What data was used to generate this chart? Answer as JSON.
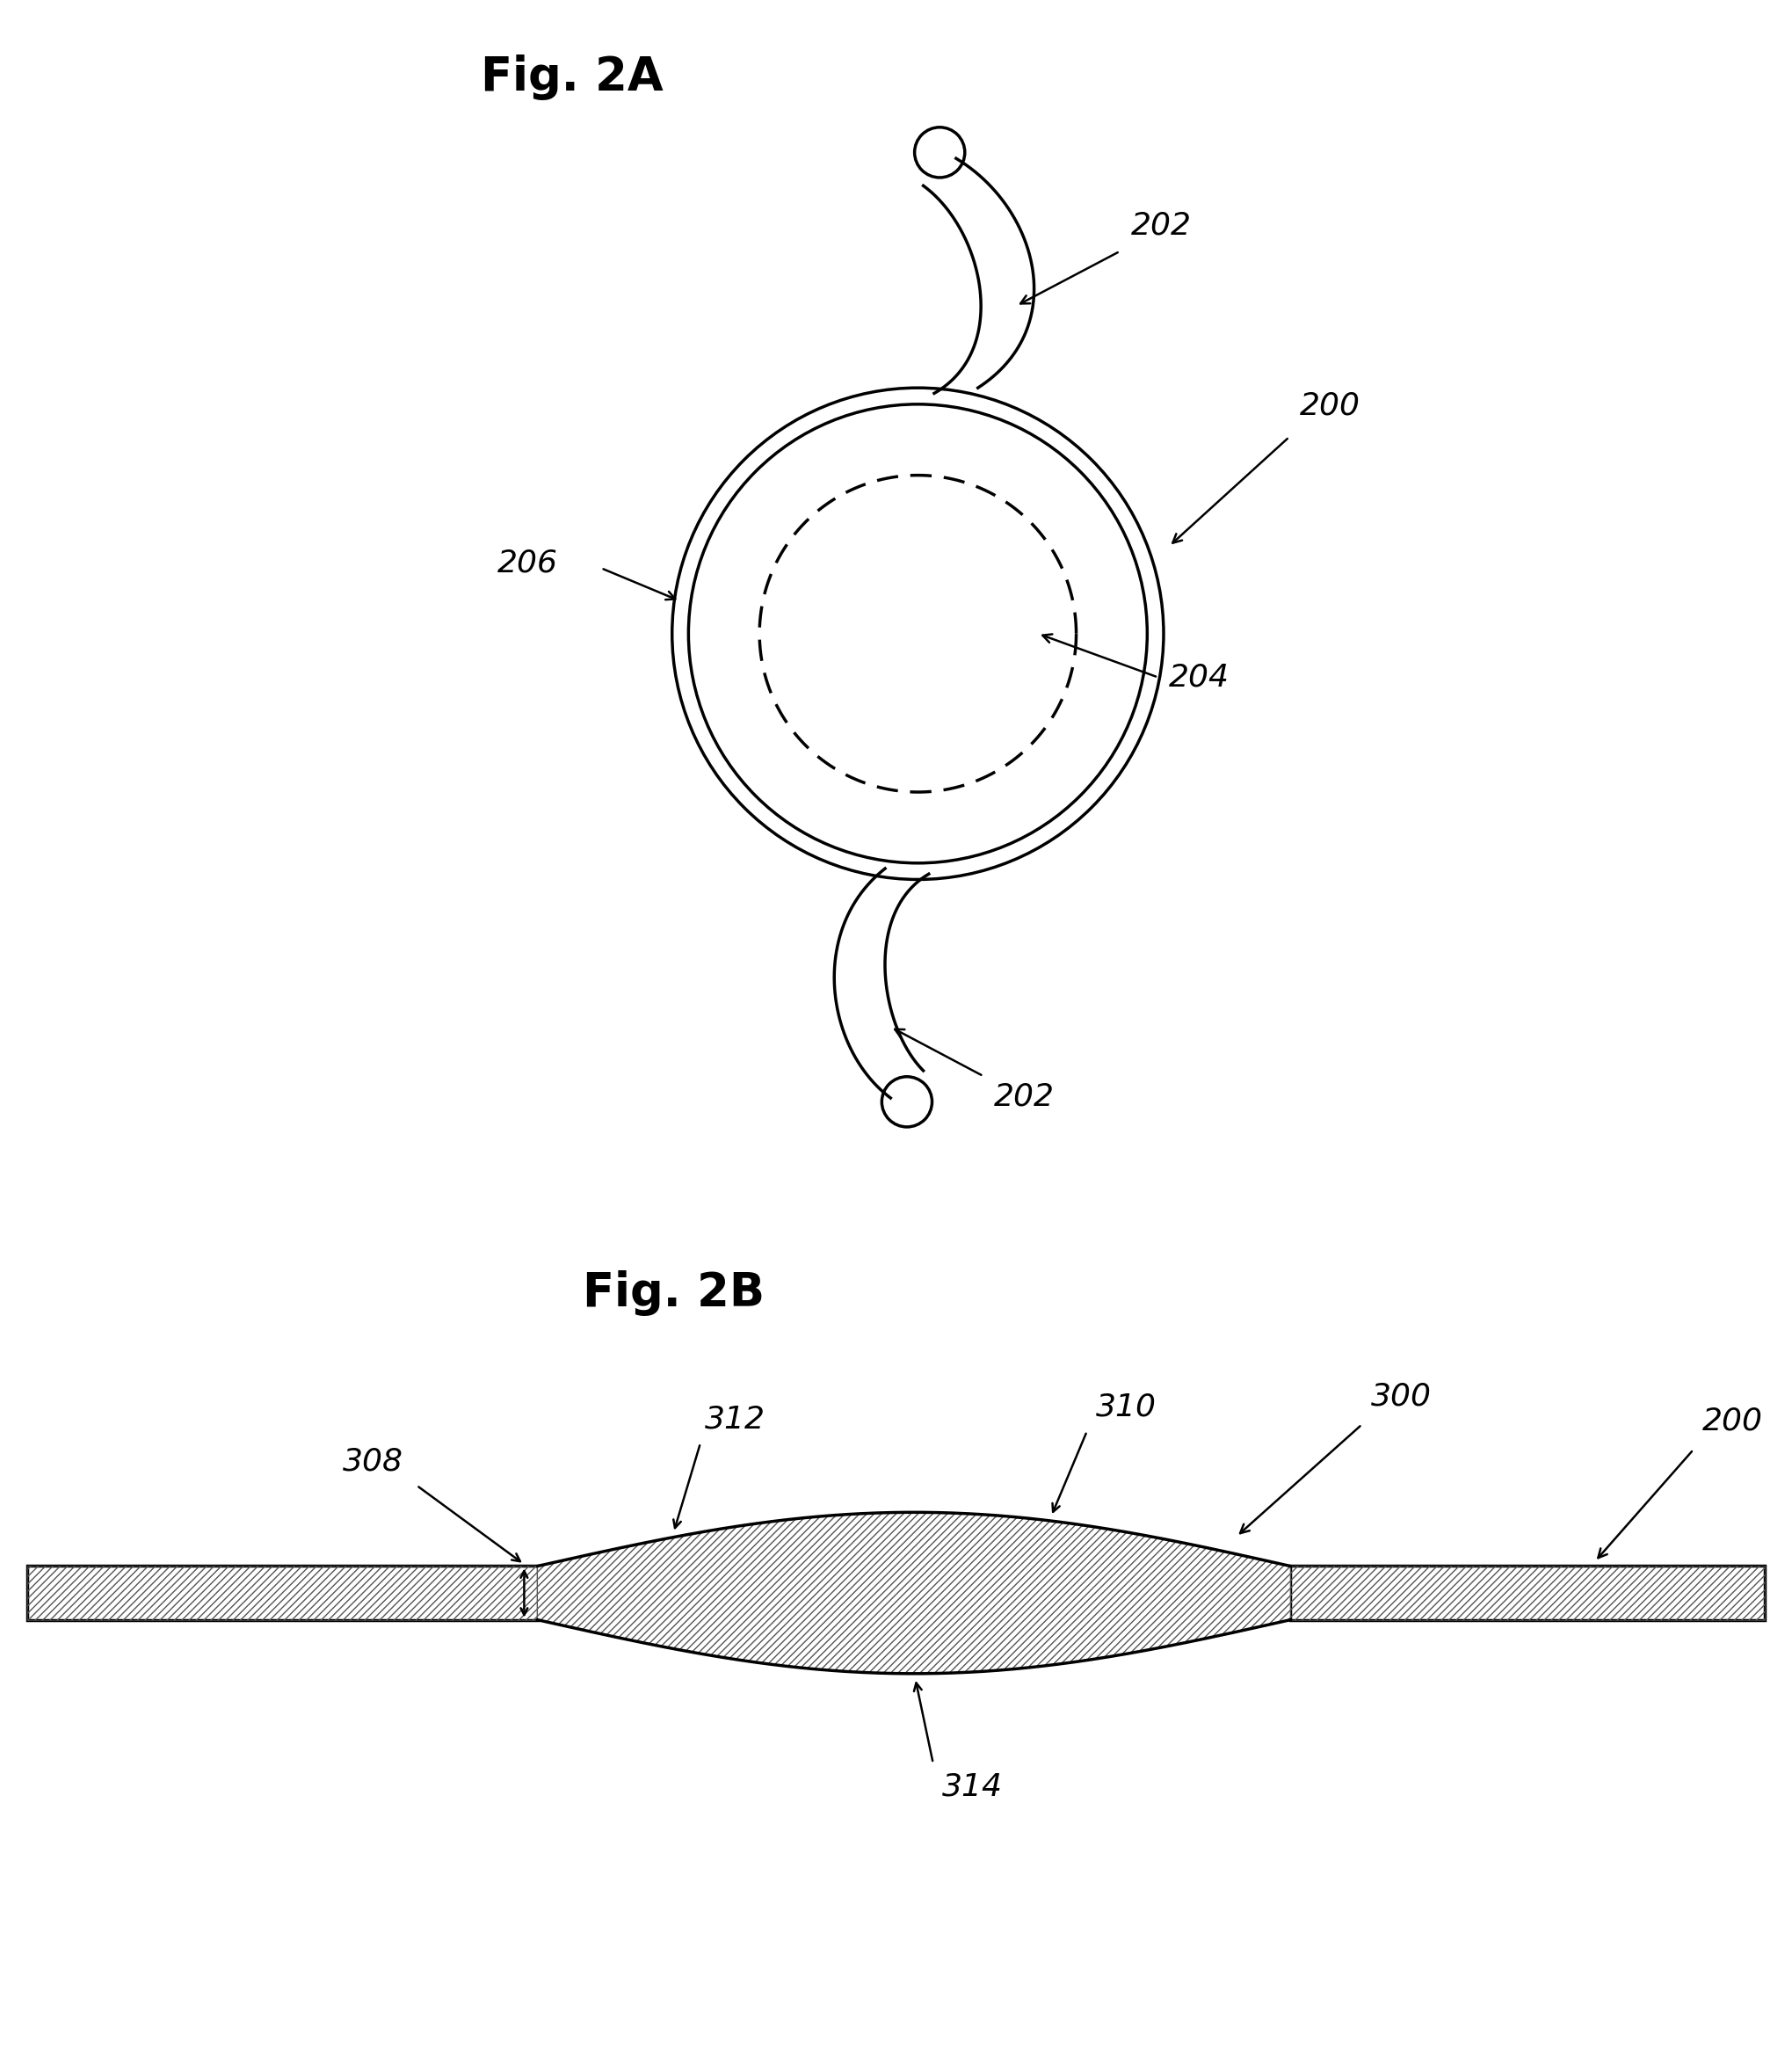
{
  "fig_title_2a": "Fig. 2A",
  "fig_title_2b": "Fig. 2B",
  "label_200_2a": "200",
  "label_202_top": "202",
  "label_202_bot": "202",
  "label_204": "204",
  "label_206": "206",
  "label_200_2b": "200",
  "label_300": "300",
  "label_308": "308",
  "label_310": "310",
  "label_312": "312",
  "label_314": "314",
  "line_color": "#000000",
  "bg_color": "#ffffff",
  "font_size_title": 38,
  "font_size_label": 26
}
